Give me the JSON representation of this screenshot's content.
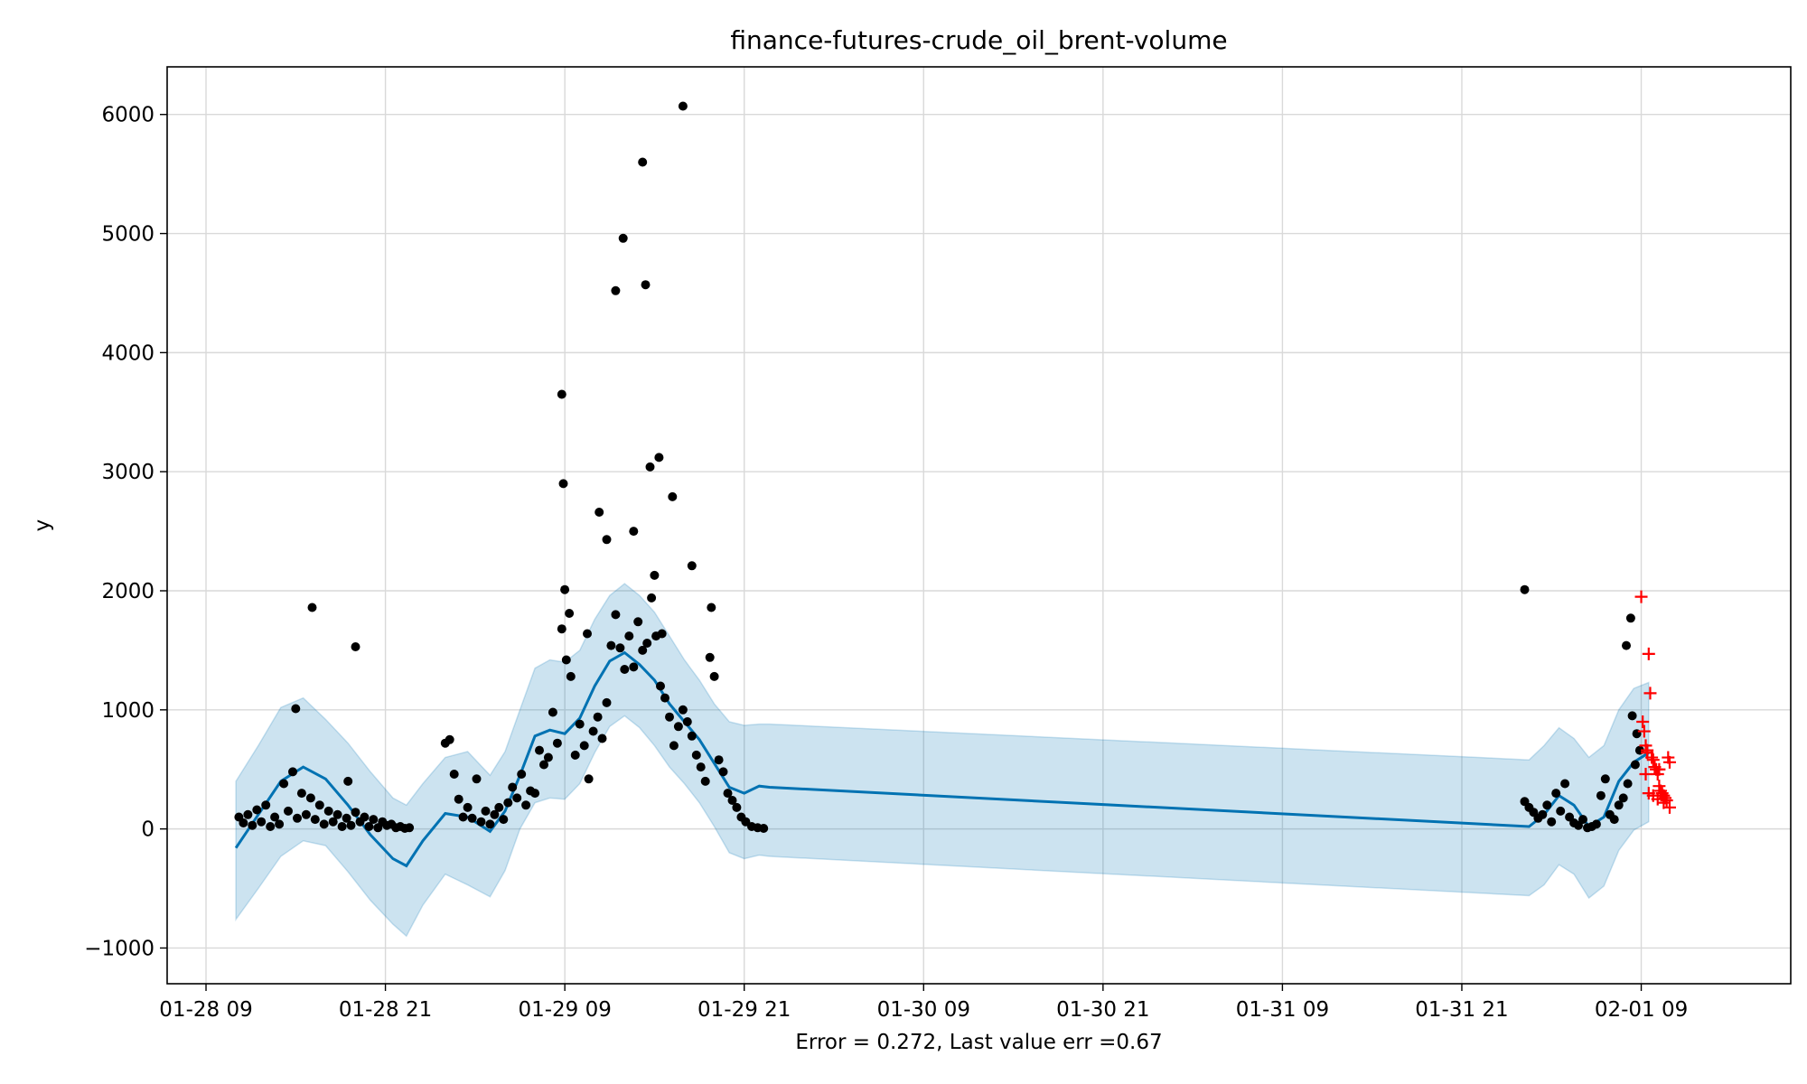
{
  "chart_data": {
    "type": "scatter",
    "title": "finance-futures-crude_oil_brent-volume",
    "xlabel": "Error = 0.272, Last value err =0.67",
    "ylabel": "y",
    "x_unit": "hours since 01-28 00:00",
    "xlim": [
      6.4,
      115.0
    ],
    "ylim": [
      -1300,
      6400
    ],
    "grid": true,
    "x_ticks": [
      {
        "value": 9,
        "label": "01-28 09"
      },
      {
        "value": 21,
        "label": "01-28 21"
      },
      {
        "value": 33,
        "label": "01-29 09"
      },
      {
        "value": 45,
        "label": "01-29 21"
      },
      {
        "value": 57,
        "label": "01-30 09"
      },
      {
        "value": 69,
        "label": "01-30 21"
      },
      {
        "value": 81,
        "label": "01-31 09"
      },
      {
        "value": 93,
        "label": "01-31 21"
      },
      {
        "value": 105,
        "label": "02-01 09"
      }
    ],
    "y_ticks": [
      {
        "value": -1000,
        "label": "−1000"
      },
      {
        "value": 0,
        "label": "0"
      },
      {
        "value": 1000,
        "label": "1000"
      },
      {
        "value": 2000,
        "label": "2000"
      },
      {
        "value": 3000,
        "label": "3000"
      },
      {
        "value": 4000,
        "label": "4000"
      },
      {
        "value": 5000,
        "label": "5000"
      },
      {
        "value": 6000,
        "label": "6000"
      }
    ],
    "colors": {
      "forecast_line": "#0072B2",
      "uncertainty_band": "#0072B2",
      "observed_points": "#000000",
      "test_points": "#ff0000",
      "grid": "#d9d9d9"
    },
    "series": [
      {
        "kind": "forecast",
        "x": [
          11.0,
          12.5,
          14.0,
          15.5,
          17.0,
          18.5,
          20.0,
          21.5,
          22.4,
          23.5,
          25.0,
          26.5,
          28.0,
          29.0,
          30.0,
          31.0,
          32.0,
          33.0,
          34.0,
          35.0,
          36.0,
          37.0,
          38.0,
          39.0,
          40.0,
          41.0,
          42.0,
          43.0,
          44.0,
          45.0,
          46.0,
          46.7,
          97.5,
          98.5,
          99.5,
          100.5,
          101.5,
          102.5,
          103.5,
          104.5,
          105.5
        ],
        "y": [
          -160,
          120,
          400,
          520,
          420,
          200,
          -50,
          -250,
          -310,
          -100,
          130,
          100,
          -20,
          150,
          450,
          780,
          830,
          800,
          930,
          1200,
          1410,
          1480,
          1380,
          1250,
          1050,
          900,
          750,
          550,
          350,
          300,
          360,
          350,
          20,
          120,
          280,
          200,
          20,
          100,
          400,
          560,
          640
        ],
        "upper": [
          400,
          700,
          1020,
          1100,
          920,
          720,
          480,
          260,
          200,
          380,
          600,
          650,
          450,
          650,
          1000,
          1350,
          1420,
          1400,
          1500,
          1760,
          1960,
          2060,
          1960,
          1820,
          1620,
          1420,
          1250,
          1050,
          900,
          870,
          880,
          880,
          580,
          700,
          850,
          760,
          600,
          700,
          1000,
          1180,
          1230
        ],
        "lower": [
          -760,
          -500,
          -230,
          -100,
          -140,
          -360,
          -600,
          -800,
          -900,
          -640,
          -380,
          -470,
          -570,
          -350,
          0,
          220,
          260,
          250,
          380,
          640,
          860,
          950,
          850,
          700,
          520,
          380,
          220,
          20,
          -200,
          -250,
          -220,
          -230,
          -560,
          -470,
          -300,
          -380,
          -580,
          -480,
          -180,
          -10,
          60
        ]
      },
      {
        "kind": "observed",
        "x": [
          11.2,
          11.5,
          11.8,
          12.1,
          12.4,
          12.7,
          13.0,
          13.3,
          13.6,
          13.9,
          14.2,
          14.5,
          14.8,
          15.1,
          15.4,
          15.7,
          16.0,
          16.3,
          16.6,
          16.9,
          17.2,
          17.5,
          17.8,
          18.1,
          18.4,
          18.7,
          19.0,
          19.3,
          19.6,
          19.9,
          20.2,
          20.5,
          20.8,
          21.1,
          21.4,
          21.7,
          22.0,
          22.3,
          22.6,
          16.1,
          19.0,
          15.0,
          18.5,
          25.0,
          25.3,
          25.6,
          25.9,
          26.2,
          26.5,
          26.8,
          27.1,
          27.4,
          27.7,
          28.0,
          28.3,
          28.6,
          28.9,
          29.2,
          29.5,
          29.8,
          30.1,
          30.4,
          30.7,
          31.0,
          31.3,
          31.6,
          31.9,
          32.2,
          32.5,
          32.8,
          33.1,
          33.4,
          33.7,
          34.0,
          34.3,
          34.6,
          34.9,
          35.2,
          35.5,
          35.8,
          36.1,
          36.4,
          36.7,
          37.0,
          37.3,
          37.6,
          37.9,
          38.2,
          38.5,
          38.8,
          39.1,
          39.4,
          39.7,
          40.0,
          40.3,
          40.6,
          40.9,
          41.2,
          41.5,
          41.8,
          42.1,
          42.4,
          42.7,
          43.0,
          43.3,
          43.6,
          43.9,
          44.2,
          44.5,
          44.8,
          45.1,
          45.5,
          45.9,
          46.3,
          32.8,
          32.9,
          35.3,
          36.4,
          36.9,
          38.2,
          38.4,
          38.7,
          40.9,
          33.0,
          33.3,
          39.0,
          39.5,
          39.3,
          40.2,
          34.5,
          35.8,
          37.6,
          41.5,
          42.8,
          97.2,
          97.5,
          97.8,
          98.1,
          98.4,
          98.7,
          99.0,
          99.3,
          99.6,
          99.9,
          100.2,
          100.5,
          100.8,
          101.1,
          101.4,
          101.7,
          102.0,
          102.3,
          102.6,
          102.9,
          103.2,
          103.5,
          103.8,
          104.1,
          104.4,
          104.7,
          104.9,
          104.6,
          104.3,
          104.0,
          97.2
        ],
        "y": [
          100,
          50,
          120,
          30,
          160,
          60,
          200,
          20,
          100,
          40,
          380,
          150,
          480,
          90,
          300,
          120,
          260,
          80,
          200,
          40,
          150,
          60,
          120,
          20,
          90,
          30,
          140,
          60,
          100,
          20,
          80,
          10,
          60,
          30,
          40,
          10,
          20,
          5,
          10,
          1860,
          1530,
          1010,
          400,
          720,
          750,
          460,
          250,
          100,
          180,
          90,
          420,
          60,
          150,
          40,
          120,
          180,
          80,
          220,
          350,
          260,
          460,
          200,
          320,
          300,
          660,
          540,
          600,
          980,
          720,
          1680,
          1420,
          1280,
          620,
          880,
          700,
          420,
          820,
          940,
          760,
          1060,
          1540,
          1800,
          1520,
          1340,
          1620,
          1360,
          1740,
          1500,
          1560,
          1940,
          1620,
          1200,
          1100,
          940,
          700,
          860,
          1000,
          900,
          780,
          620,
          520,
          400,
          1440,
          1280,
          580,
          480,
          300,
          240,
          180,
          100,
          60,
          20,
          10,
          5,
          3650,
          2900,
          2660,
          4520,
          4960,
          5600,
          4570,
          3040,
          6070,
          2010,
          1810,
          2130,
          1640,
          3120,
          2790,
          1640,
          2430,
          2500,
          2210,
          1860,
          230,
          180,
          140,
          90,
          120,
          200,
          60,
          300,
          150,
          380,
          100,
          50,
          30,
          80,
          10,
          20,
          40,
          280,
          420,
          120,
          80,
          200,
          260,
          380,
          950,
          800,
          660,
          540,
          1770,
          1540,
          2010
        ]
      },
      {
        "kind": "test",
        "x": [
          105.0,
          105.1,
          105.2,
          105.3,
          105.4,
          105.5,
          105.6,
          105.7,
          105.8,
          105.9,
          106.0,
          106.1,
          106.2,
          106.3,
          106.4,
          106.5,
          106.6,
          106.7,
          106.8,
          106.9,
          105.3,
          105.5,
          105.8,
          106.1,
          106.5,
          106.9,
          105.4,
          106.2
        ],
        "y": [
          1950,
          900,
          820,
          700,
          640,
          1470,
          1140,
          600,
          580,
          520,
          500,
          460,
          360,
          320,
          300,
          280,
          260,
          240,
          600,
          560,
          460,
          300,
          280,
          250,
          220,
          180,
          660,
          500
        ]
      }
    ]
  }
}
